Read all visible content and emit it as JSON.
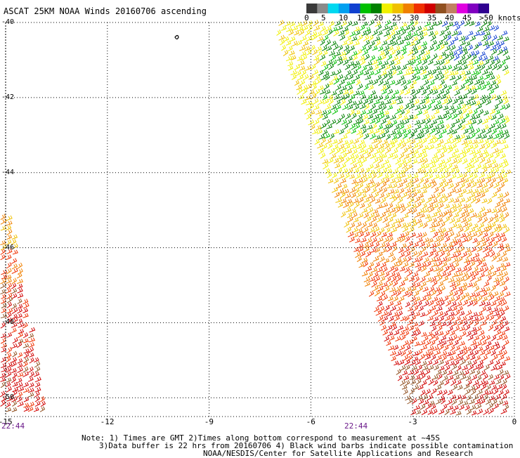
{
  "title": "ASCAT 25KM NOAA Winds 20160706 ascending",
  "legend": {
    "labels": [
      "0",
      "5",
      "10",
      "15",
      "20",
      "25",
      "30",
      "35",
      "40",
      "45",
      ">50 knots"
    ],
    "colors": [
      "#3a3a3a",
      "#8a8a8a",
      "#00d8f0",
      "#00a0f0",
      "#1040d0",
      "#00c000",
      "#008000",
      "#f0f000",
      "#f0c000",
      "#f08000",
      "#f03000",
      "#d00000",
      "#905020",
      "#c08060",
      "#e000e0",
      "#8000c0",
      "#300090"
    ]
  },
  "axes": {
    "y_ticks": [
      "-40",
      "-42",
      "-44",
      "-46",
      "-48",
      "-50"
    ],
    "x_ticks": [
      "-15",
      "-12",
      "-9",
      "-6",
      "-3",
      "0"
    ]
  },
  "map_data": {
    "lon_range": [
      -15,
      0
    ],
    "lat_range": [
      -50.5,
      -40
    ],
    "grid": true,
    "swaths": [
      {
        "side": "right",
        "top_lon_range": [
          -7.2,
          0
        ],
        "bottom_lon_range": [
          -3.1,
          0
        ]
      },
      {
        "side": "left",
        "lon_range": [
          -15,
          -13.6
        ],
        "lat_range": [
          -50.5,
          -45.5
        ]
      }
    ]
  },
  "times": {
    "left": "22:44",
    "center": "22:44"
  },
  "notes": {
    "line1": "Note: 1) Times are GMT 2)Times along bottom correspond to measurement at ~45S",
    "line2": "3)Data buffer is 22 hrs from 20160706 4) Black wind barbs indicate possible contamination",
    "line3": "NOAA/NESDIS/Center for Satellite Applications and Research"
  }
}
